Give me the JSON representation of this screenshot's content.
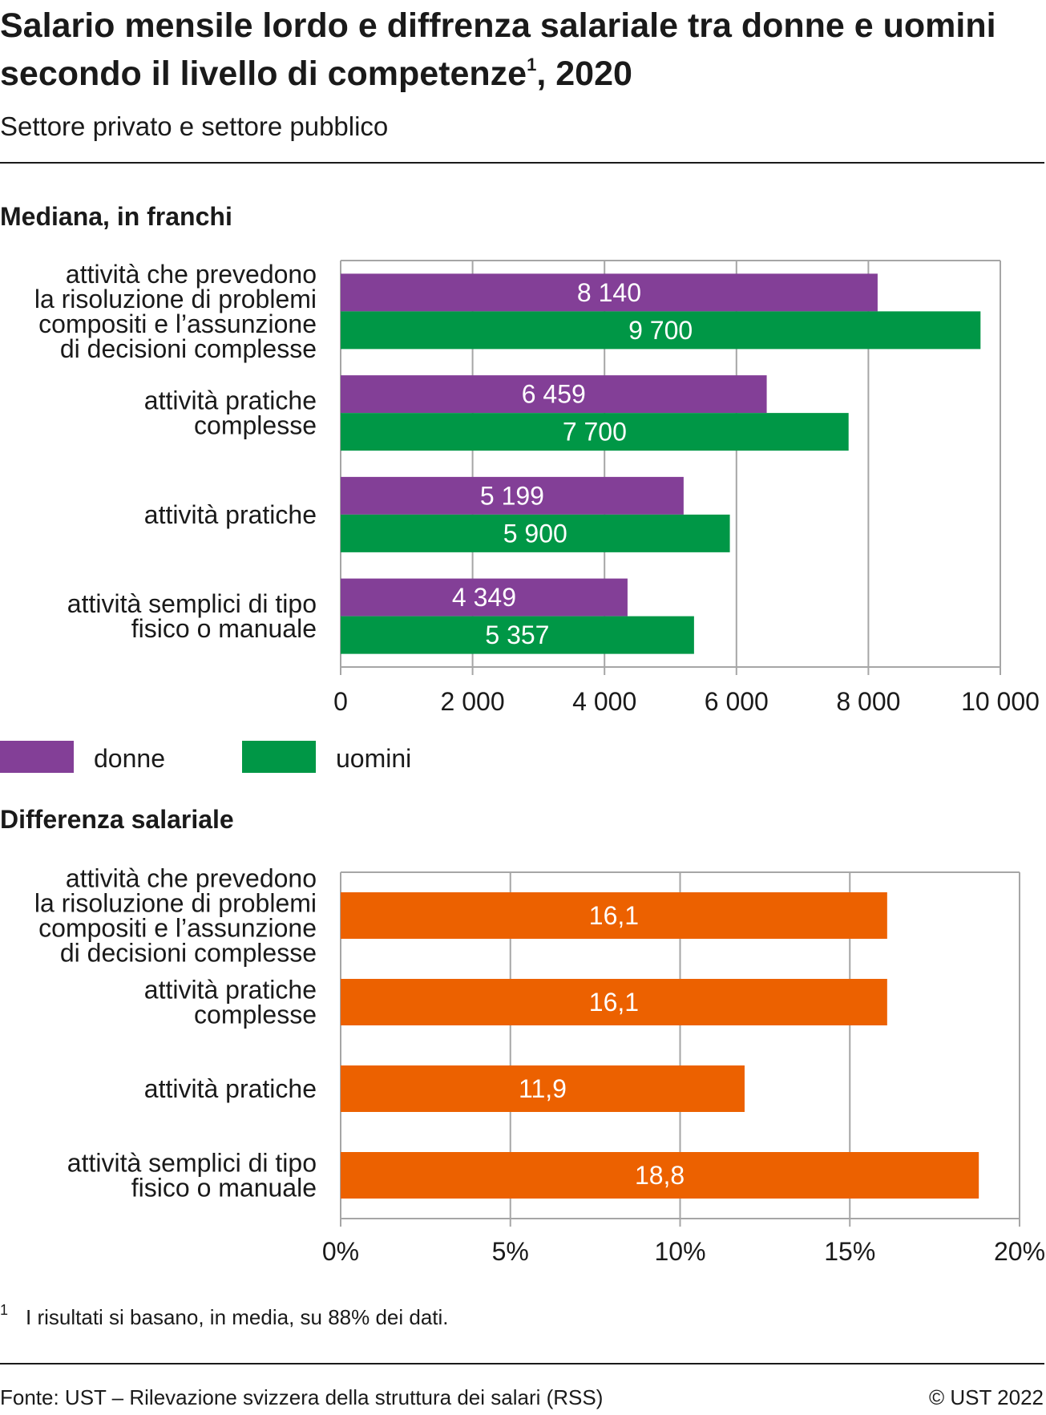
{
  "header": {
    "title_main": "Salario mensile lordo e diffrenza salariale tra donne e uomini secondo il livello di competenze",
    "title_sup": "1",
    "title_end": ", 2020",
    "subtitle": "Settore privato e settore pubblico"
  },
  "colors": {
    "donne": "#833f97",
    "uomini": "#009746",
    "difference": "#ec6100",
    "grid": "#a6a6a6",
    "text": "#1a1a1a"
  },
  "legend": {
    "donne": "donne",
    "uomini": "uomini"
  },
  "chart_data": [
    {
      "type": "bar",
      "orientation": "horizontal",
      "title": "Mediana, in franchi",
      "categories": [
        [
          "attività che prevedono",
          "la risoluzione di problemi",
          "compositi e l’assunzione",
          "di decisioni complesse"
        ],
        [
          "attività pratiche",
          "complesse"
        ],
        [
          "attività pratiche"
        ],
        [
          "attività semplici di tipo",
          "fisico o manuale"
        ]
      ],
      "series": [
        {
          "name": "donne",
          "values": [
            8140,
            6459,
            5199,
            4349
          ],
          "labels": [
            "8 140",
            "6 459",
            "5 199",
            "4 349"
          ]
        },
        {
          "name": "uomini",
          "values": [
            9700,
            7700,
            5900,
            5357
          ],
          "labels": [
            "9 700",
            "7 700",
            "5 900",
            "5 357"
          ]
        }
      ],
      "xlim": [
        0,
        10000
      ],
      "ticks": [
        0,
        2000,
        4000,
        6000,
        8000,
        10000
      ],
      "tick_labels": [
        "0",
        "2 000",
        "4 000",
        "6 000",
        "8 000",
        "10 000"
      ],
      "grid": true,
      "legend_position": "bottom-left"
    },
    {
      "type": "bar",
      "orientation": "horizontal",
      "title": "Differenza salariale",
      "categories": [
        [
          "attività che prevedono",
          "la risoluzione di problemi",
          "compositi e l’assunzione",
          "di decisioni complesse"
        ],
        [
          "attività pratiche",
          "complesse"
        ],
        [
          "attività pratiche"
        ],
        [
          "attività semplici di tipo",
          "fisico o manuale"
        ]
      ],
      "series": [
        {
          "values": [
            16.1,
            16.1,
            11.9,
            18.8
          ],
          "labels": [
            "16,1",
            "16,1",
            "11,9",
            "18,8"
          ]
        }
      ],
      "xlim": [
        0,
        20
      ],
      "ticks": [
        0,
        5,
        10,
        15,
        20
      ],
      "tick_labels": [
        "0%",
        "5%",
        "10%",
        "15%",
        "20%"
      ],
      "grid": true
    }
  ],
  "footnote": {
    "mark": "1",
    "text": "I risultati si basano, in media, su 88% dei dati."
  },
  "footer": {
    "source": "Fonte: UST –  Rilevazione svizzera della struttura dei salari (RSS)",
    "copyright": "© UST 2022"
  }
}
